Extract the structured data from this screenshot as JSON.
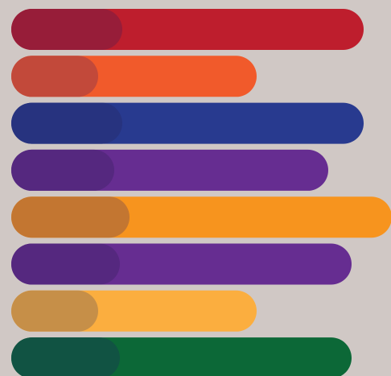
{
  "background_color": "#d0c8c5",
  "chart_data": {
    "type": "bar",
    "orientation": "horizontal",
    "grid": false,
    "legend": "none",
    "bars": [
      {
        "value": 438,
        "inner_value": 138,
        "color": "#be1e2d",
        "inner_color": "#971d39"
      },
      {
        "value": 305,
        "inner_value": 108,
        "color": "#f15a2b",
        "inner_color": "#c2493a"
      },
      {
        "value": 438,
        "inner_value": 138,
        "color": "#283a8f",
        "inner_color": "#27337f"
      },
      {
        "value": 394,
        "inner_value": 128,
        "color": "#662d91",
        "inner_color": "#55287f"
      },
      {
        "value": 473,
        "inner_value": 147,
        "color": "#f7941e",
        "inner_color": "#c37631"
      },
      {
        "value": 423,
        "inner_value": 135,
        "color": "#662d91",
        "inner_color": "#55287f"
      },
      {
        "value": 305,
        "inner_value": 108,
        "color": "#fbae3f",
        "inner_color": "#c68f48"
      },
      {
        "value": 423,
        "inner_value": 135,
        "color": "#0c6837",
        "inner_color": "#115343"
      }
    ]
  }
}
